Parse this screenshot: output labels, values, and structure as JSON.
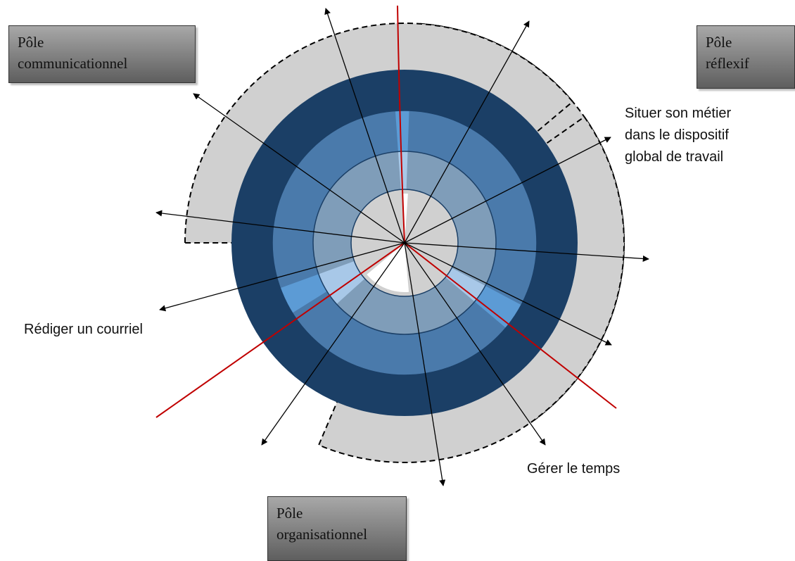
{
  "poles": {
    "communicationnel": {
      "line1": "Pôle",
      "line2": "communicationnel"
    },
    "reflexif": {
      "line1": "Pôle",
      "line2": "réflexif"
    },
    "organisationnel": {
      "line1": "Pôle",
      "line2": "organisationnel"
    }
  },
  "labels": {
    "situer": {
      "line1": "Situer son métier",
      "line2": "dans le dispositif",
      "line3": "global de travail"
    },
    "rediger": "Rédiger un courriel",
    "gerer": "Gérer le temps"
  },
  "colors": {
    "ring_outer": "#1b3f66",
    "ring_middle": "#4a7aab",
    "ring_inner": "#7f9db9",
    "ring_center": "#d0d0d0",
    "sector_highlight_middle": "#5c9bd5",
    "sector_highlight_inner": "#a8c8e8",
    "pole_zone": "#d0d0d0",
    "separator_line": "#c00000",
    "arrow": "#000000"
  }
}
